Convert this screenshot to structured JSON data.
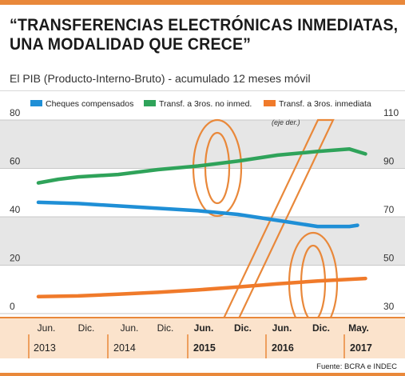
{
  "header": {
    "title_line1": "“TRANSFERENCIAS ELECTRÓNICAS INMEDIATAS,",
    "title_line2": "UNA MODALIDAD QUE CRECE”",
    "subtitle": "El PIB (Producto-Interno-Bruto) - acumulado 12 meses móvil"
  },
  "footer": {
    "source": "Fuente: BCRA e INDEC"
  },
  "colors": {
    "accent": "#e9883a",
    "cheques": "#1f8fd6",
    "no_inmed": "#2fa35a",
    "inmediata": "#f07a2a",
    "band": "#e6e6e6"
  },
  "chart_data": {
    "type": "line",
    "note": "(eje der.)",
    "y_left": {
      "ticks": [
        0,
        20,
        40,
        60,
        80
      ],
      "ylim": [
        0,
        80
      ]
    },
    "y_right": {
      "ticks": [
        30,
        50,
        70,
        90,
        110
      ],
      "ylim": [
        30,
        110
      ]
    },
    "x_ticks": [
      "Jun.",
      "Dic.",
      "Jun.",
      "Dic.",
      "Jun.",
      "Dic.",
      "Jun.",
      "Dic.",
      "May."
    ],
    "x_ticks_bold": [
      false,
      false,
      false,
      false,
      true,
      true,
      true,
      true,
      true
    ],
    "years": [
      "2013",
      "2014",
      "2015",
      "2016",
      "2017"
    ],
    "years_bold": [
      false,
      false,
      true,
      true,
      true
    ],
    "legend": [
      {
        "name": "Cheques compensados",
        "color": "#1f8fd6"
      },
      {
        "name": "Transf. a 3ros. no inmed.",
        "color": "#2fa35a"
      },
      {
        "name": "Transf. a 3ros. inmediata",
        "color": "#f07a2a"
      }
    ],
    "series": [
      {
        "name": "Cheques compensados",
        "axis": "left",
        "x": [
          0,
          1,
          2,
          3,
          4,
          5,
          6,
          7,
          7.8,
          8
        ],
        "values": [
          46,
          45.5,
          44.5,
          43.5,
          42.5,
          41,
          38.5,
          36,
          36,
          36.5
        ]
      },
      {
        "name": "Transf. a 3ros. no inmed.",
        "axis": "left",
        "x": [
          0,
          0.5,
          1,
          2,
          3,
          4,
          5,
          6,
          7,
          7.8,
          8.2
        ],
        "values": [
          54,
          55.5,
          56.5,
          57.5,
          59.5,
          61,
          63,
          65.5,
          67,
          68,
          66
        ]
      },
      {
        "name": "Transf. a 3ros. inmediata",
        "axis": "right",
        "x": [
          0,
          1,
          2,
          3,
          4,
          5,
          6,
          7,
          8.2
        ],
        "values": [
          37,
          37.3,
          38,
          38.8,
          39.8,
          41,
          42.3,
          43.5,
          44.5
        ]
      }
    ]
  }
}
